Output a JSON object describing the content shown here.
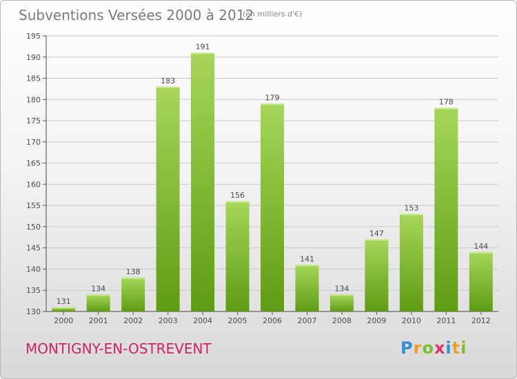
{
  "header": {
    "title": "Subventions Versées 2000 à 2012",
    "unit": "(en milliers d'€)"
  },
  "footer": {
    "place": "MONTIGNY-EN-OSTREVENT",
    "logo_letters": [
      "P",
      "r",
      "o",
      "x",
      "i",
      "t",
      "i"
    ],
    "logo_colors": [
      "#2f8fd6",
      "#f0a020",
      "#7bbf30",
      "#e03070",
      "#2f8fd6",
      "#f0a020",
      "#7bbf30"
    ]
  },
  "colors": {
    "bar_top": "#a6d65a",
    "bar_bottom": "#5e9c12",
    "grid": "#c8c8c8",
    "title": "#7a7a7a",
    "place": "#d0206a"
  },
  "chart_data": {
    "type": "bar",
    "title": "Subventions Versées 2000 à 2012",
    "subtitle": "(en milliers d'€)",
    "xlabel": "",
    "ylabel": "",
    "categories": [
      "2000",
      "2001",
      "2002",
      "2003",
      "2004",
      "2005",
      "2006",
      "2007",
      "2008",
      "2009",
      "2010",
      "2011",
      "2012"
    ],
    "values": [
      131,
      134,
      138,
      183,
      191,
      156,
      179,
      141,
      134,
      147,
      153,
      178,
      144
    ],
    "ylim": [
      130,
      195
    ],
    "yticks": [
      130,
      135,
      140,
      145,
      150,
      155,
      160,
      165,
      170,
      175,
      180,
      185,
      190,
      195
    ],
    "grid": true,
    "data_labels": true
  }
}
